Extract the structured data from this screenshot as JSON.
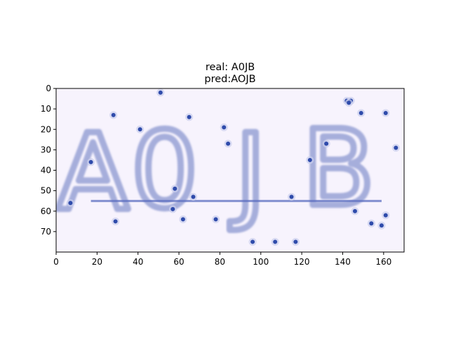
{
  "figure": {
    "title_line1": "real: A0JB",
    "title_line2": "pred:AOJB"
  },
  "image_panel": {
    "type": "image",
    "colormap": "lavender-to-navy",
    "x_axis": {
      "range": [
        0,
        170
      ],
      "ticks": [
        0,
        20,
        40,
        60,
        80,
        100,
        120,
        140,
        160
      ],
      "tick_labels": [
        "0",
        "20",
        "40",
        "60",
        "80",
        "100",
        "120",
        "140",
        "160"
      ]
    },
    "y_axis": {
      "range": [
        0,
        80
      ],
      "inverted": true,
      "ticks": [
        0,
        10,
        20,
        30,
        40,
        50,
        60,
        70
      ],
      "tick_labels": [
        "0",
        "10",
        "20",
        "30",
        "40",
        "50",
        "60",
        "70"
      ]
    },
    "glyphs": [
      {
        "char": "A",
        "x": 18,
        "y": 40
      },
      {
        "char": "0",
        "x": 53,
        "y": 39
      },
      {
        "char": "J",
        "x": 95,
        "y": 40
      },
      {
        "char": "B",
        "x": 138,
        "y": 38
      }
    ],
    "strike_line": {
      "x1": 17,
      "x2": 159,
      "y": 55
    },
    "noise_dots": [
      [
        51,
        2
      ],
      [
        28,
        13
      ],
      [
        65,
        14
      ],
      [
        142,
        6
      ],
      [
        144,
        6
      ],
      [
        143,
        7
      ],
      [
        149,
        12
      ],
      [
        161,
        12
      ],
      [
        41,
        20
      ],
      [
        82,
        19
      ],
      [
        84,
        27
      ],
      [
        132,
        27
      ],
      [
        166,
        29
      ],
      [
        17,
        36
      ],
      [
        124,
        35
      ],
      [
        58,
        49
      ],
      [
        67,
        53
      ],
      [
        115,
        53
      ],
      [
        7,
        56
      ],
      [
        57,
        59
      ],
      [
        146,
        60
      ],
      [
        161,
        62
      ],
      [
        29,
        65
      ],
      [
        62,
        64
      ],
      [
        78,
        64
      ],
      [
        154,
        66
      ],
      [
        159,
        67
      ],
      [
        96,
        75
      ],
      [
        107,
        75
      ],
      [
        117,
        75
      ]
    ],
    "colors": {
      "background": "#f7f3fd",
      "glyph": "#a6aedb",
      "line": "#5a6dc0",
      "dot": "#2f4bab"
    }
  }
}
